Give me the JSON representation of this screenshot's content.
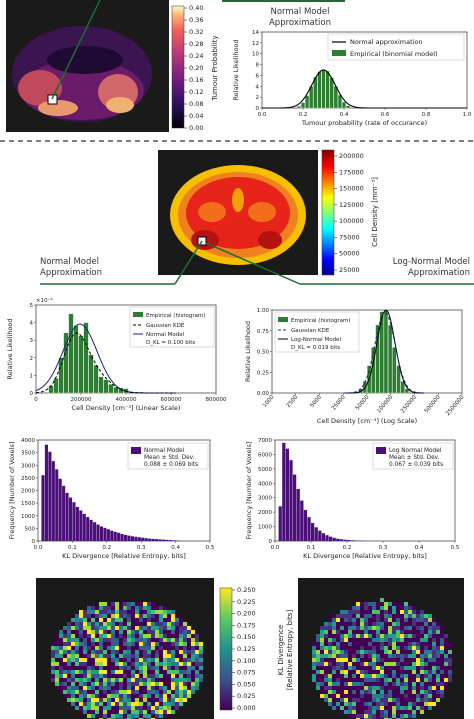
{
  "colors": {
    "empirical": "#2e7d32",
    "normal": "#000000",
    "kde": "#1a237e",
    "hist_purple": "#4b0f7a",
    "dashed_separator": "#555555",
    "connector": "#1b6d33"
  },
  "top_section": {
    "tumour_colorbar": {
      "label": "Tumour Probability",
      "ticks": [
        "0.40",
        "0.36",
        "0.32",
        "0.28",
        "0.24",
        "0.20",
        "0.16",
        "0.12",
        "0.08",
        "0.04",
        "0.00"
      ]
    },
    "title": "Normal Model\nApproximation",
    "title_line1": "Normal Model",
    "title_line2": "Approximation"
  },
  "cell_density_map": {
    "colorbar_label": "Cell Density [mm⁻³]",
    "colorbar_ticks": [
      "200000",
      "175000",
      "150000",
      "125000",
      "100000",
      "75000",
      "50000",
      "25000"
    ]
  },
  "labels": {
    "normal_model_line1": "Normal Model",
    "normal_model_line2": "Approximation",
    "lognormal_line1": "Log-Normal Model",
    "lognormal_line2": "Approximation"
  },
  "kl_map": {
    "colorbar_label_line1": "KL Divergence",
    "colorbar_label_line2": "[Relative Entropy, bits]",
    "colorbar_ticks": [
      "0.250",
      "0.225",
      "0.200",
      "0.175",
      "0.150",
      "0.125",
      "0.100",
      "0.075",
      "0.050",
      "0.025",
      "0.000"
    ]
  },
  "chart_data": [
    {
      "id": "tumour_probability",
      "type": "bar",
      "title": "",
      "xlabel": "Tumour probability (rate of occurance)",
      "ylabel": "Relative Likelihood",
      "xlim": [
        0.0,
        1.0
      ],
      "ylim": [
        0,
        14
      ],
      "xticks": [
        "0.0",
        "0.2",
        "0.4",
        "0.6",
        "0.8",
        "1.0"
      ],
      "yticks": [
        "0",
        "2",
        "4",
        "6",
        "8",
        "10",
        "12",
        "14"
      ],
      "legend": [
        "Normal approximation",
        "Empirical (binomial model)"
      ],
      "legend_position": "top-right",
      "hist_x": [
        0.18,
        0.2,
        0.22,
        0.24,
        0.26,
        0.28,
        0.3,
        0.32,
        0.34,
        0.36,
        0.38,
        0.4,
        0.42
      ],
      "hist_y": [
        0.3,
        1.0,
        2.3,
        4.0,
        5.7,
        6.7,
        7.0,
        6.8,
        5.6,
        4.0,
        2.4,
        1.1,
        0.4
      ],
      "normal": {
        "mean": 0.3,
        "sd": 0.057
      }
    },
    {
      "id": "linear_cell_density",
      "type": "bar",
      "xlabel": "Cell Density [cm⁻³] (Linear Scale)",
      "ylabel": "Relative Likelihood",
      "multiplier": "×10⁻⁶",
      "xlim": [
        0,
        900000
      ],
      "ylim": [
        0,
        6
      ],
      "xticks": [
        "0",
        "200000",
        "400000",
        "600000",
        "800000"
      ],
      "yticks": [
        "0",
        "1",
        "2",
        "3",
        "4",
        "5"
      ],
      "legend": [
        "Empirical (histogram)",
        "Gaussian KDE",
        "Normal Model",
        "D_KL = 0.100 bits"
      ],
      "legend_position": "top-right",
      "hist_x": [
        75000,
        100000,
        125000,
        150000,
        175000,
        200000,
        225000,
        250000,
        275000,
        300000,
        325000,
        350000,
        375000,
        400000,
        425000,
        450000
      ],
      "hist_y": [
        0.5,
        1.0,
        2.4,
        4.1,
        5.4,
        4.6,
        3.9,
        4.8,
        2.6,
        1.9,
        1.1,
        0.9,
        0.6,
        0.4,
        0.35,
        0.3
      ],
      "normal": {
        "mean": 220000,
        "sd": 85000,
        "peak": 4.7
      },
      "kde_peak": 4.6
    },
    {
      "id": "log_cell_density",
      "type": "bar",
      "xlabel": "Cell Density [cm⁻³] (Log Scale)",
      "ylabel": "Relative Likelihood",
      "xlim": [
        0,
        2500000
      ],
      "ylim": [
        0,
        1.0
      ],
      "xticks": [
        "1000",
        "2500",
        "5000",
        "25000",
        "50000",
        "100000",
        "250000",
        "500000",
        "2500000"
      ],
      "yticks": [
        "0.00",
        "0.25",
        "0.50",
        "0.75",
        "1.00"
      ],
      "legend": [
        "Empirical (histogram)",
        "Gaussian KDE",
        "Log-Normal Model",
        "D_KL = 0.019 bits"
      ],
      "legend_position": "top-left",
      "hist_y": [
        0.05,
        0.14,
        0.33,
        0.55,
        0.82,
        0.98,
        1.0,
        0.82,
        0.55,
        0.33,
        0.14,
        0.05
      ]
    },
    {
      "id": "kl_normal_hist",
      "type": "bar",
      "xlabel": "KL Divergence [Relative Entropy, bits]",
      "ylabel": "Frequency [Number of Voxels]",
      "xlim": [
        0.0,
        0.5
      ],
      "ylim": [
        0,
        4300
      ],
      "xticks": [
        "0.0",
        "0.1",
        "0.2",
        "0.3",
        "0.4",
        "0.5"
      ],
      "yticks": [
        "0",
        "500",
        "1000",
        "1500",
        "2000",
        "2500",
        "3000",
        "3500",
        "4000"
      ],
      "legend": [
        "Normal Model",
        "Mean ± Std. Dev.",
        "0.088 ± 0.069 bits"
      ],
      "legend_position": "top-right",
      "bin_width": 0.01,
      "bin_start": 0.01,
      "values": [
        2800,
        4100,
        3800,
        3400,
        3050,
        2650,
        2350,
        2050,
        1850,
        1650,
        1450,
        1300,
        1150,
        1020,
        900,
        800,
        700,
        620,
        560,
        500,
        440,
        390,
        350,
        300,
        260,
        230,
        200,
        180,
        160,
        140,
        120,
        100,
        90,
        80,
        70,
        60,
        50,
        40,
        30,
        20
      ]
    },
    {
      "id": "kl_lognormal_hist",
      "type": "bar",
      "xlabel": "KL Divergence [Relative Entropy, bits]",
      "ylabel": "Frequency [Number of Voxels]",
      "xlim": [
        0.0,
        0.5
      ],
      "ylim": [
        0,
        7000
      ],
      "xticks": [
        "0.0",
        "0.1",
        "0.2",
        "0.3",
        "0.4",
        "0.5"
      ],
      "yticks": [
        "0",
        "1000",
        "2000",
        "3000",
        "4000",
        "5000",
        "6000",
        "7000"
      ],
      "legend": [
        "Log Normal Model",
        "Mean ± Std. Dev.",
        "0.067 ± 0.039 bits"
      ],
      "legend_position": "top-right",
      "bin_width": 0.01,
      "bin_start": 0.01,
      "values": [
        2400,
        6800,
        6400,
        5600,
        4600,
        3600,
        2800,
        2150,
        1650,
        1250,
        950,
        720,
        540,
        400,
        300,
        220,
        160,
        120,
        90,
        70,
        50,
        35,
        25,
        15
      ]
    }
  ]
}
